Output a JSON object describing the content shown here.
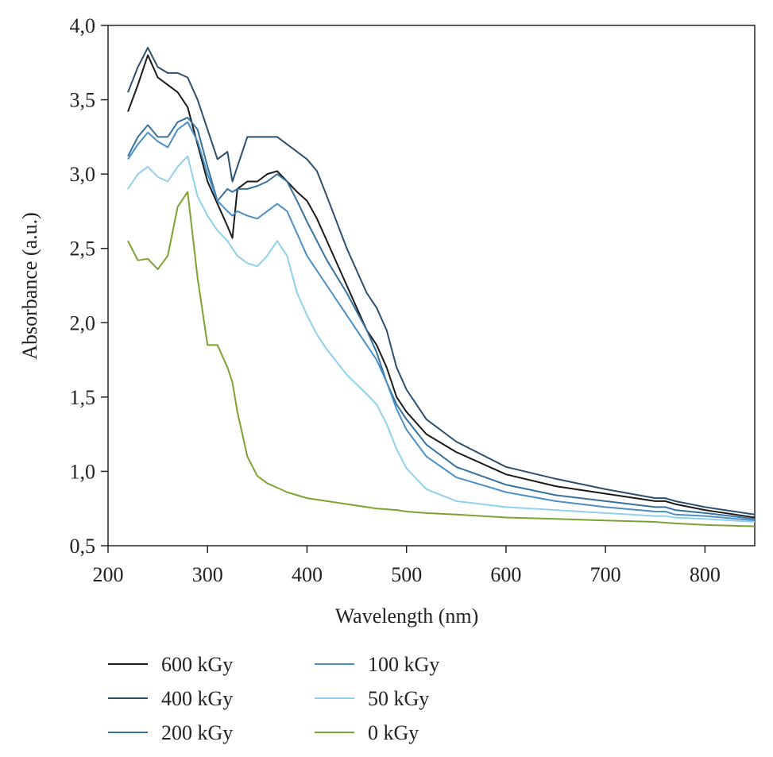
{
  "chart_data": {
    "type": "line",
    "xlabel": "Wavelength (nm)",
    "ylabel": "Absorbance (a.u.)",
    "x": [
      220,
      230,
      240,
      250,
      260,
      270,
      280,
      290,
      300,
      310,
      320,
      325,
      330,
      340,
      350,
      360,
      370,
      380,
      390,
      400,
      410,
      420,
      440,
      460,
      470,
      480,
      490,
      500,
      520,
      550,
      600,
      650,
      700,
      750,
      760,
      770,
      800,
      850
    ],
    "series": [
      {
        "name": "600 kGy",
        "color": "#1a1a1a",
        "values": [
          3.42,
          3.6,
          3.8,
          3.65,
          3.6,
          3.55,
          3.45,
          3.2,
          2.95,
          2.8,
          2.65,
          2.57,
          2.9,
          2.95,
          2.95,
          3.0,
          3.02,
          2.95,
          2.88,
          2.82,
          2.7,
          2.55,
          2.25,
          1.95,
          1.85,
          1.7,
          1.5,
          1.4,
          1.25,
          1.13,
          0.98,
          0.9,
          0.85,
          0.8,
          0.8,
          0.78,
          0.74,
          0.69
        ]
      },
      {
        "name": "400 kGy",
        "color": "#2b4f6e",
        "values": [
          3.55,
          3.72,
          3.85,
          3.72,
          3.68,
          3.68,
          3.65,
          3.5,
          3.3,
          3.1,
          3.15,
          2.95,
          3.05,
          3.25,
          3.25,
          3.25,
          3.25,
          3.2,
          3.15,
          3.1,
          3.02,
          2.85,
          2.5,
          2.2,
          2.1,
          1.95,
          1.7,
          1.55,
          1.35,
          1.2,
          1.03,
          0.95,
          0.88,
          0.82,
          0.82,
          0.8,
          0.76,
          0.71
        ]
      },
      {
        "name": "200 kGy",
        "color": "#3572a0",
        "values": [
          3.12,
          3.25,
          3.33,
          3.25,
          3.25,
          3.35,
          3.38,
          3.3,
          3.05,
          2.82,
          2.9,
          2.88,
          2.9,
          2.9,
          2.92,
          2.95,
          3.0,
          2.95,
          2.82,
          2.68,
          2.55,
          2.42,
          2.2,
          1.95,
          1.8,
          1.6,
          1.45,
          1.35,
          1.18,
          1.03,
          0.91,
          0.84,
          0.8,
          0.76,
          0.76,
          0.74,
          0.72,
          0.68
        ]
      },
      {
        "name": "100 kGy",
        "color": "#4a90c8",
        "values": [
          3.1,
          3.2,
          3.28,
          3.22,
          3.18,
          3.3,
          3.35,
          3.22,
          3.0,
          2.82,
          2.75,
          2.72,
          2.75,
          2.72,
          2.7,
          2.75,
          2.8,
          2.75,
          2.6,
          2.45,
          2.35,
          2.25,
          2.05,
          1.85,
          1.75,
          1.6,
          1.42,
          1.28,
          1.1,
          0.96,
          0.86,
          0.8,
          0.76,
          0.73,
          0.73,
          0.71,
          0.7,
          0.67
        ]
      },
      {
        "name": "50 kGy",
        "color": "#8fd0ef",
        "values": [
          2.9,
          3.0,
          3.05,
          2.98,
          2.95,
          3.05,
          3.12,
          2.85,
          2.72,
          2.62,
          2.55,
          2.5,
          2.45,
          2.4,
          2.38,
          2.45,
          2.55,
          2.45,
          2.2,
          2.05,
          1.92,
          1.82,
          1.65,
          1.52,
          1.45,
          1.32,
          1.15,
          1.02,
          0.88,
          0.8,
          0.76,
          0.74,
          0.72,
          0.7,
          0.7,
          0.69,
          0.68,
          0.66
        ]
      },
      {
        "name": "0 kGy",
        "color": "#7aa332",
        "values": [
          2.55,
          2.42,
          2.43,
          2.36,
          2.45,
          2.78,
          2.88,
          2.3,
          1.85,
          1.85,
          1.7,
          1.6,
          1.4,
          1.1,
          0.97,
          0.92,
          0.89,
          0.86,
          0.84,
          0.82,
          0.81,
          0.8,
          0.78,
          0.76,
          0.75,
          0.745,
          0.74,
          0.73,
          0.72,
          0.71,
          0.69,
          0.68,
          0.67,
          0.66,
          0.655,
          0.65,
          0.64,
          0.63
        ]
      }
    ],
    "xlim": [
      200,
      850
    ],
    "xticks": [
      200,
      300,
      400,
      500,
      600,
      700,
      800
    ],
    "ylim": [
      0.5,
      4.0
    ],
    "yticks": [
      {
        "value": 0.5,
        "label": "0,5"
      },
      {
        "value": 1.0,
        "label": "1,0"
      },
      {
        "value": 1.5,
        "label": "1,5"
      },
      {
        "value": 2.0,
        "label": "2,0"
      },
      {
        "value": 2.5,
        "label": "2,5"
      },
      {
        "value": 3.0,
        "label": "3,0"
      },
      {
        "value": 3.5,
        "label": "3,5"
      },
      {
        "value": 4.0,
        "label": "4,0"
      }
    ],
    "grid": false
  }
}
